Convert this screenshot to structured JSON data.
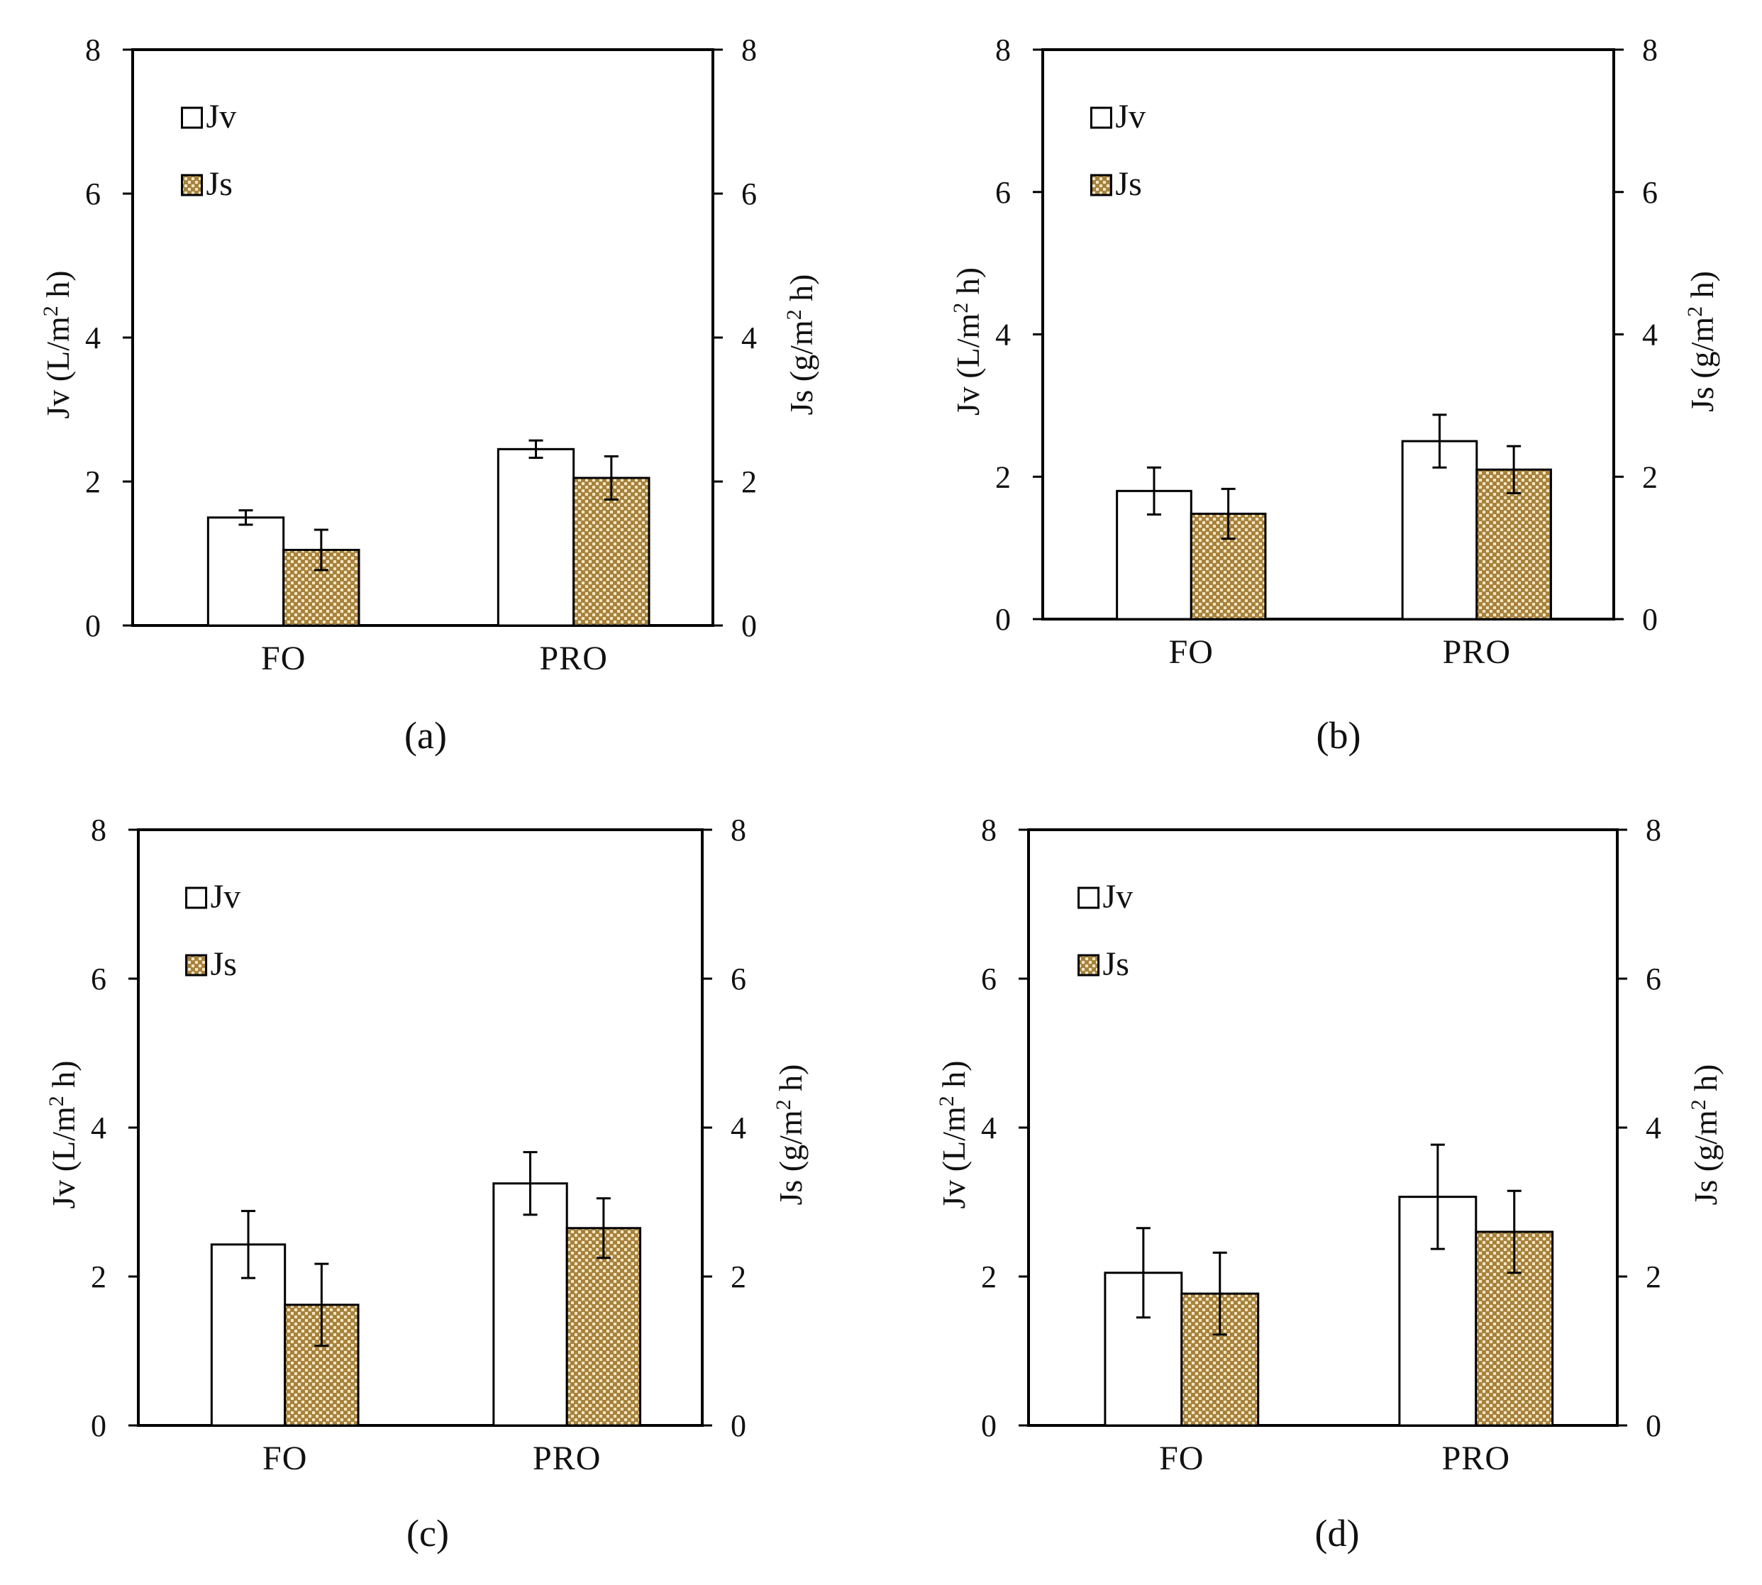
{
  "figure": {
    "panel_labels": [
      "(a)",
      "(b)",
      "(c)",
      "(d)"
    ]
  },
  "colors": {
    "jv_fill": "#ffffff",
    "js_fill": "#a7823c",
    "js_dot": "#f3e6c6",
    "axis": "#000000"
  },
  "chart_data": [
    {
      "type": "bar",
      "panel": "(a)",
      "categories": [
        "FO",
        "PRO"
      ],
      "series": [
        {
          "name": "Jv",
          "axis": "left",
          "values": [
            1.5,
            2.45
          ],
          "errors": [
            0.1,
            0.12
          ]
        },
        {
          "name": "Js",
          "axis": "right",
          "values": [
            1.05,
            2.05
          ],
          "errors": [
            0.28,
            0.3
          ]
        }
      ],
      "ylabel_left": "Jv (L/m² h)",
      "ylabel_right": "Js (g/m² h)",
      "ylim": [
        0,
        8
      ],
      "y2lim": [
        0,
        8
      ],
      "yticks": [
        0,
        2,
        4,
        6,
        8
      ],
      "legend": "top-left"
    },
    {
      "type": "bar",
      "panel": "(b)",
      "categories": [
        "FO",
        "PRO"
      ],
      "series": [
        {
          "name": "Jv",
          "axis": "left",
          "values": [
            1.8,
            2.5
          ],
          "errors": [
            0.33,
            0.37
          ]
        },
        {
          "name": "Js",
          "axis": "right",
          "values": [
            1.48,
            2.1
          ],
          "errors": [
            0.35,
            0.33
          ]
        }
      ],
      "ylabel_left": "Jv (L/m² h)",
      "ylabel_right": "Js (g/m² h)",
      "ylim": [
        0,
        8
      ],
      "y2lim": [
        0,
        8
      ],
      "yticks": [
        0,
        2,
        4,
        6,
        8
      ],
      "legend": "top-left"
    },
    {
      "type": "bar",
      "panel": "(c)",
      "categories": [
        "FO",
        "PRO"
      ],
      "series": [
        {
          "name": "Jv",
          "axis": "left",
          "values": [
            2.43,
            3.25
          ],
          "errors": [
            0.45,
            0.42
          ]
        },
        {
          "name": "Js",
          "axis": "right",
          "values": [
            1.62,
            2.65
          ],
          "errors": [
            0.55,
            0.4
          ]
        }
      ],
      "ylabel_left": "Jv (L/m² h)",
      "ylabel_right": "Js (g/m² h)",
      "ylim": [
        0,
        8
      ],
      "y2lim": [
        0,
        8
      ],
      "yticks": [
        0,
        2,
        4,
        6,
        8
      ],
      "legend": "top-left"
    },
    {
      "type": "bar",
      "panel": "(d)",
      "categories": [
        "FO",
        "PRO"
      ],
      "series": [
        {
          "name": "Jv",
          "axis": "left",
          "values": [
            2.05,
            3.07
          ],
          "errors": [
            0.6,
            0.7
          ]
        },
        {
          "name": "Js",
          "axis": "right",
          "values": [
            1.77,
            2.6
          ],
          "errors": [
            0.55,
            0.55
          ]
        }
      ],
      "ylabel_left": "Jv (L/m² h)",
      "ylabel_right": "Js (g/m² h)",
      "ylim": [
        0,
        8
      ],
      "y2lim": [
        0,
        8
      ],
      "yticks": [
        0,
        2,
        4,
        6,
        8
      ],
      "legend": "top-left"
    }
  ]
}
